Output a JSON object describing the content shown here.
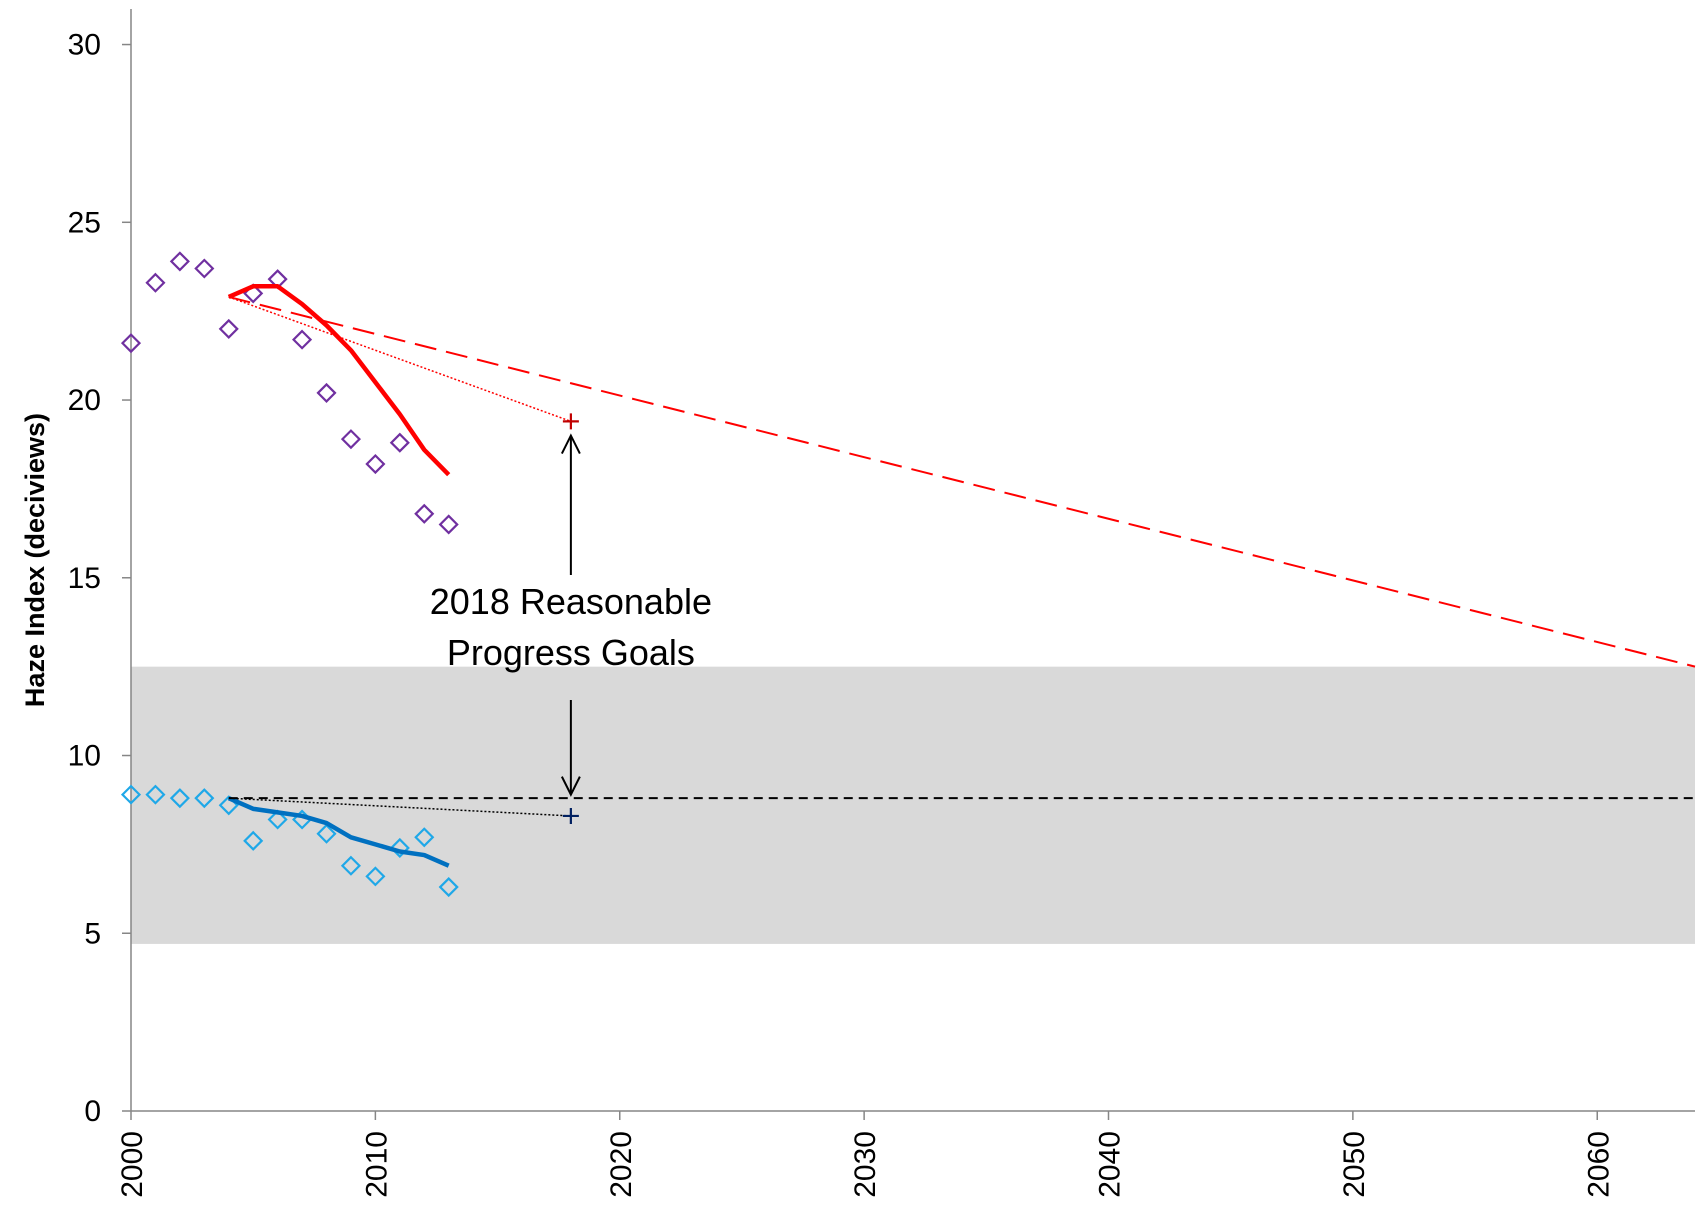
{
  "chart_data": {
    "type": "line",
    "y_label": "Haze Index (deciviews)",
    "xlim": [
      2000,
      2064
    ],
    "ylim": [
      0,
      31
    ],
    "xticks": [
      2000,
      2010,
      2020,
      2030,
      2040,
      2050,
      2060
    ],
    "yticks": [
      0,
      5,
      10,
      15,
      20,
      25,
      30
    ],
    "band": {
      "range": [
        4.7,
        12.5
      ],
      "color": "#d9d9d9"
    },
    "series": [
      {
        "style": "markers",
        "color": "#7030a0",
        "x": [
          2000,
          2001,
          2002,
          2003,
          2004,
          2005,
          2006,
          2007,
          2008,
          2009,
          2010,
          2011,
          2012,
          2013
        ],
        "values": [
          21.6,
          23.3,
          23.9,
          23.7,
          22.0,
          23.0,
          23.4,
          21.7,
          20.2,
          18.9,
          18.2,
          18.8,
          16.8,
          16.5
        ]
      },
      {
        "style": "solid",
        "color": "#ff0000",
        "x": [
          2004,
          2005,
          2006,
          2007,
          2008,
          2009,
          2010,
          2011,
          2012,
          2013
        ],
        "values": [
          22.9,
          23.2,
          23.2,
          22.7,
          22.1,
          21.4,
          20.5,
          19.6,
          18.6,
          17.9
        ]
      },
      {
        "style": "dashed",
        "color": "#ff0000",
        "x": [
          2004,
          2064
        ],
        "values": [
          22.9,
          12.5
        ]
      },
      {
        "style": "dotted",
        "color": "#ff0000",
        "x": [
          2004,
          2018
        ],
        "values": [
          22.9,
          19.4
        ]
      },
      {
        "style": "plus",
        "color": "#c00000",
        "x": [
          2018
        ],
        "values": [
          19.4
        ]
      },
      {
        "style": "markers",
        "color": "#1fa8e8",
        "x": [
          2000,
          2001,
          2002,
          2003,
          2004,
          2005,
          2006,
          2007,
          2008,
          2009,
          2010,
          2011,
          2012,
          2013
        ],
        "values": [
          8.9,
          8.9,
          8.8,
          8.8,
          8.6,
          7.6,
          8.2,
          8.2,
          7.8,
          6.9,
          6.6,
          7.4,
          7.7,
          6.3
        ]
      },
      {
        "style": "solid",
        "color": "#0070c0",
        "x": [
          2004,
          2005,
          2006,
          2007,
          2008,
          2009,
          2010,
          2011,
          2012,
          2013
        ],
        "values": [
          8.8,
          8.5,
          8.4,
          8.3,
          8.1,
          7.7,
          7.5,
          7.3,
          7.2,
          6.9
        ]
      },
      {
        "style": "dashed-fine",
        "color": "#000000",
        "x": [
          2004,
          2064
        ],
        "values": [
          8.8,
          8.8
        ]
      },
      {
        "style": "dotted",
        "color": "#000000",
        "x": [
          2004,
          2018
        ],
        "values": [
          8.8,
          8.3
        ]
      },
      {
        "style": "plus",
        "color": "#002060",
        "x": [
          2018
        ],
        "values": [
          8.3
        ]
      }
    ],
    "annotation": {
      "lines": [
        "2018 Reasonable",
        "Progress Goals"
      ],
      "x": 2018,
      "up_to": 19.0,
      "down_to": 8.9
    }
  }
}
